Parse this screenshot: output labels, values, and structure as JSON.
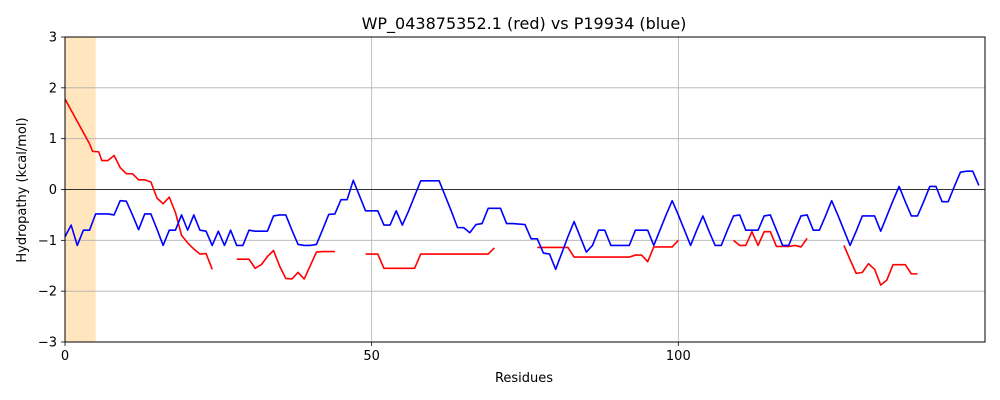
{
  "chart_data": {
    "type": "line",
    "title": "WP_043875352.1 (red) vs P19934 (blue)",
    "xlabel": "Residues",
    "ylabel": "Hydropathy (kcal/mol)",
    "xlim": [
      0,
      150
    ],
    "ylim": [
      -3,
      3
    ],
    "x_ticks": [
      0,
      50,
      100
    ],
    "y_ticks": [
      -3,
      -2,
      -1,
      0,
      1,
      2,
      3
    ],
    "grid": true,
    "zero_line": true,
    "highlight_region": {
      "x_start": 0,
      "x_end": 5,
      "color": "#ffe6bf"
    },
    "series": [
      {
        "color": "#ff0000",
        "segments": [
          [
            [
              0,
              1.78
            ],
            [
              1,
              1.56
            ],
            [
              2,
              1.34
            ],
            [
              3,
              1.12
            ],
            [
              4,
              0.9
            ],
            [
              4.5,
              0.75
            ],
            [
              5.5,
              0.74
            ],
            [
              6,
              0.57
            ],
            [
              7,
              0.57
            ],
            [
              8,
              0.67
            ],
            [
              9,
              0.43
            ],
            [
              10,
              0.31
            ],
            [
              11,
              0.31
            ],
            [
              12,
              0.19
            ],
            [
              13,
              0.19
            ],
            [
              14,
              0.15
            ],
            [
              15,
              -0.17
            ],
            [
              16,
              -0.28
            ],
            [
              17,
              -0.15
            ],
            [
              18,
              -0.45
            ],
            [
              19,
              -0.9
            ],
            [
              20,
              -1.05
            ],
            [
              21,
              -1.17
            ],
            [
              22,
              -1.27
            ],
            [
              23,
              -1.26
            ],
            [
              24,
              -1.57
            ]
          ],
          [
            [
              28,
              -1.37
            ],
            [
              29,
              -1.37
            ],
            [
              30,
              -1.37
            ],
            [
              31,
              -1.55
            ],
            [
              32,
              -1.48
            ],
            [
              33,
              -1.32
            ],
            [
              34,
              -1.2
            ],
            [
              35,
              -1.51
            ],
            [
              36,
              -1.75
            ],
            [
              37,
              -1.76
            ],
            [
              38,
              -1.63
            ],
            [
              39,
              -1.76
            ],
            [
              41,
              -1.23
            ],
            [
              42,
              -1.22
            ],
            [
              43,
              -1.22
            ],
            [
              44,
              -1.22
            ]
          ],
          [
            [
              49,
              -1.27
            ],
            [
              50,
              -1.27
            ],
            [
              51,
              -1.27
            ],
            [
              52,
              -1.55
            ],
            [
              53,
              -1.55
            ],
            [
              54,
              -1.55
            ],
            [
              55,
              -1.55
            ],
            [
              56,
              -1.55
            ],
            [
              57,
              -1.55
            ],
            [
              58,
              -1.27
            ],
            [
              59,
              -1.27
            ],
            [
              60,
              -1.27
            ],
            [
              61,
              -1.27
            ],
            [
              62,
              -1.27
            ],
            [
              63,
              -1.27
            ],
            [
              64,
              -1.27
            ],
            [
              65,
              -1.27
            ],
            [
              66,
              -1.27
            ],
            [
              67,
              -1.27
            ],
            [
              68,
              -1.27
            ],
            [
              69,
              -1.27
            ],
            [
              70,
              -1.15
            ]
          ],
          [
            [
              77,
              -1.14
            ],
            [
              78,
              -1.14
            ],
            [
              79,
              -1.14
            ],
            [
              80,
              -1.14
            ],
            [
              81,
              -1.14
            ],
            [
              82,
              -1.14
            ],
            [
              83,
              -1.33
            ],
            [
              84,
              -1.33
            ],
            [
              85,
              -1.33
            ],
            [
              86,
              -1.33
            ],
            [
              87,
              -1.33
            ],
            [
              88,
              -1.33
            ],
            [
              89,
              -1.33
            ],
            [
              90,
              -1.33
            ],
            [
              91,
              -1.33
            ],
            [
              92,
              -1.33
            ],
            [
              93,
              -1.29
            ],
            [
              94,
              -1.29
            ],
            [
              95,
              -1.42
            ],
            [
              96,
              -1.13
            ],
            [
              97,
              -1.13
            ],
            [
              98,
              -1.13
            ],
            [
              99,
              -1.13
            ],
            [
              100,
              -1.0
            ]
          ],
          [
            [
              109,
              -1.0
            ],
            [
              110,
              -1.1
            ],
            [
              111,
              -1.1
            ],
            [
              112,
              -0.83
            ],
            [
              113,
              -1.1
            ],
            [
              114,
              -0.83
            ],
            [
              115,
              -0.83
            ],
            [
              116,
              -1.12
            ],
            [
              117,
              -1.12
            ],
            [
              118,
              -1.12
            ],
            [
              119,
              -1.1
            ],
            [
              120,
              -1.13
            ],
            [
              121,
              -0.96
            ]
          ],
          [
            [
              127,
              -1.1
            ],
            [
              128,
              -1.38
            ],
            [
              129,
              -1.65
            ],
            [
              130,
              -1.63
            ],
            [
              131,
              -1.46
            ],
            [
              132,
              -1.57
            ],
            [
              133,
              -1.88
            ],
            [
              134,
              -1.78
            ],
            [
              135,
              -1.48
            ],
            [
              136,
              -1.48
            ],
            [
              137,
              -1.48
            ],
            [
              138,
              -1.66
            ],
            [
              139,
              -1.66
            ]
          ]
        ]
      },
      {
        "color": "#0000ff",
        "segments": [
          [
            [
              0,
              -0.93
            ],
            [
              1,
              -0.7
            ],
            [
              2,
              -1.1
            ],
            [
              3,
              -0.8
            ],
            [
              4,
              -0.8
            ],
            [
              5,
              -0.48
            ],
            [
              6,
              -0.48
            ],
            [
              7,
              -0.48
            ],
            [
              8,
              -0.5
            ],
            [
              9,
              -0.22
            ],
            [
              10,
              -0.23
            ],
            [
              11,
              -0.5
            ],
            [
              12,
              -0.79
            ],
            [
              13,
              -0.48
            ],
            [
              14,
              -0.48
            ],
            [
              15,
              -0.78
            ],
            [
              16,
              -1.1
            ],
            [
              17,
              -0.8
            ],
            [
              18,
              -0.8
            ],
            [
              19,
              -0.5
            ],
            [
              20,
              -0.8
            ],
            [
              21,
              -0.5
            ],
            [
              22,
              -0.8
            ],
            [
              23,
              -0.82
            ],
            [
              24,
              -1.1
            ],
            [
              25,
              -0.82
            ],
            [
              26,
              -1.1
            ],
            [
              27,
              -0.8
            ],
            [
              28,
              -1.1
            ],
            [
              29,
              -1.1
            ],
            [
              30,
              -0.8
            ],
            [
              31,
              -0.82
            ],
            [
              32,
              -0.82
            ],
            [
              33,
              -0.82
            ],
            [
              34,
              -0.52
            ],
            [
              35,
              -0.5
            ],
            [
              36,
              -0.5
            ],
            [
              37,
              -0.8
            ],
            [
              38,
              -1.08
            ],
            [
              39,
              -1.1
            ],
            [
              40,
              -1.1
            ],
            [
              41,
              -1.08
            ],
            [
              42,
              -0.79
            ],
            [
              43,
              -0.49
            ],
            [
              44,
              -0.48
            ],
            [
              45,
              -0.2
            ],
            [
              46,
              -0.2
            ],
            [
              47,
              0.18
            ],
            [
              48,
              -0.12
            ],
            [
              49,
              -0.42
            ],
            [
              50,
              -0.42
            ],
            [
              51,
              -0.42
            ],
            [
              52,
              -0.7
            ],
            [
              53,
              -0.7
            ],
            [
              54,
              -0.42
            ],
            [
              55,
              -0.7
            ],
            [
              56,
              -0.43
            ],
            [
              57,
              -0.13
            ],
            [
              58,
              0.17
            ],
            [
              59,
              0.17
            ],
            [
              60,
              0.17
            ],
            [
              61,
              0.17
            ],
            [
              62,
              -0.13
            ],
            [
              63,
              -0.43
            ],
            [
              64,
              -0.75
            ],
            [
              65,
              -0.75
            ],
            [
              66,
              -0.85
            ],
            [
              67,
              -0.69
            ],
            [
              68,
              -0.67
            ],
            [
              69,
              -0.37
            ],
            [
              70,
              -0.37
            ],
            [
              71,
              -0.37
            ],
            [
              72,
              -0.67
            ],
            [
              73,
              -0.67
            ],
            [
              74,
              -0.68
            ],
            [
              75,
              -0.69
            ],
            [
              76,
              -0.97
            ],
            [
              77,
              -0.97
            ],
            [
              78,
              -1.25
            ],
            [
              79,
              -1.27
            ],
            [
              80,
              -1.57
            ],
            [
              81,
              -1.25
            ],
            [
              82,
              -0.93
            ],
            [
              83,
              -0.63
            ],
            [
              84,
              -0.93
            ],
            [
              85,
              -1.23
            ],
            [
              86,
              -1.1
            ],
            [
              87,
              -0.8
            ],
            [
              88,
              -0.8
            ],
            [
              89,
              -1.1
            ],
            [
              90,
              -1.1
            ],
            [
              91,
              -1.1
            ],
            [
              92,
              -1.1
            ],
            [
              93,
              -0.8
            ],
            [
              94,
              -0.8
            ],
            [
              95,
              -0.8
            ],
            [
              96,
              -1.1
            ],
            [
              97,
              -0.8
            ],
            [
              98,
              -0.5
            ],
            [
              99,
              -0.22
            ],
            [
              100,
              -0.5
            ],
            [
              101,
              -0.8
            ],
            [
              102,
              -1.1
            ],
            [
              103,
              -0.8
            ],
            [
              104,
              -0.52
            ],
            [
              105,
              -0.82
            ],
            [
              106,
              -1.1
            ],
            [
              107,
              -1.1
            ],
            [
              108,
              -0.8
            ],
            [
              109,
              -0.52
            ],
            [
              110,
              -0.5
            ],
            [
              111,
              -0.8
            ],
            [
              112,
              -0.8
            ],
            [
              113,
              -0.8
            ],
            [
              114,
              -0.52
            ],
            [
              115,
              -0.5
            ],
            [
              116,
              -0.8
            ],
            [
              117,
              -1.1
            ],
            [
              118,
              -1.1
            ],
            [
              119,
              -0.8
            ],
            [
              120,
              -0.52
            ],
            [
              121,
              -0.5
            ],
            [
              122,
              -0.8
            ],
            [
              123,
              -0.8
            ],
            [
              124,
              -0.52
            ],
            [
              125,
              -0.22
            ],
            [
              126,
              -0.5
            ],
            [
              127,
              -0.8
            ],
            [
              128,
              -1.1
            ],
            [
              129,
              -0.82
            ],
            [
              130,
              -0.52
            ],
            [
              131,
              -0.52
            ],
            [
              132,
              -0.52
            ],
            [
              133,
              -0.82
            ],
            [
              134,
              -0.52
            ],
            [
              135,
              -0.22
            ],
            [
              136,
              0.06
            ],
            [
              137,
              -0.24
            ],
            [
              138,
              -0.52
            ],
            [
              139,
              -0.52
            ],
            [
              140,
              -0.24
            ],
            [
              141,
              0.06
            ],
            [
              142,
              0.06
            ],
            [
              143,
              -0.24
            ],
            [
              144,
              -0.24
            ],
            [
              145,
              0.06
            ],
            [
              146,
              0.34
            ],
            [
              147,
              0.36
            ],
            [
              148,
              0.36
            ],
            [
              149,
              0.08
            ]
          ]
        ]
      }
    ]
  }
}
